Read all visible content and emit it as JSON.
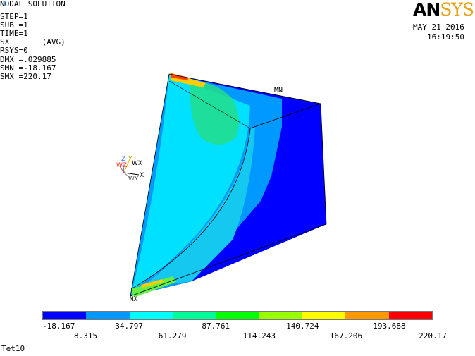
{
  "window_number": "1",
  "info": {
    "title": "NODAL SOLUTION",
    "step": "STEP=1",
    "sub": "SUB =1",
    "time": "TIME=1",
    "item": "SX       (AVG)",
    "rsys": "RSYS=0",
    "dmx": "DMX =.029885",
    "smn": "SMN =-18.167",
    "smx": "SMX =220.17"
  },
  "logo": {
    "an": "AN",
    "sys": "SYS"
  },
  "date": "MAY 21 2016",
  "time": "16:19:50",
  "mn_label": "MN",
  "mx_label": "MX",
  "triad": {
    "x": "X",
    "y": "Y",
    "z": "Z",
    "wx": "WX",
    "wy": "WY",
    "wz": "WZ"
  },
  "legend": {
    "colors": [
      "#0000ff",
      "#0099ff",
      "#00ffff",
      "#00ff99",
      "#00ff00",
      "#99ff00",
      "#ffff00",
      "#ff9900",
      "#ff0000"
    ],
    "labels": [
      "-18.167",
      "8.315",
      "34.797",
      "61.279",
      "87.761",
      "114.243",
      "140.724",
      "167.206",
      "193.688",
      "220.17"
    ]
  },
  "footer": "Tet10"
}
